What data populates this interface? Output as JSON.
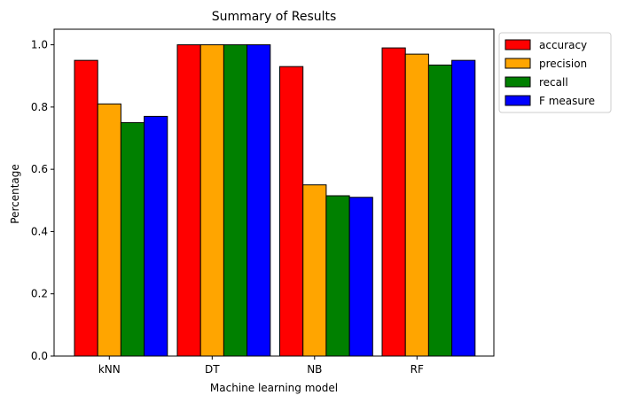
{
  "chart_data": {
    "type": "bar",
    "title": "Summary of Results",
    "xlabel": "Machine learning model",
    "ylabel": "Percentage",
    "categories": [
      "kNN",
      "DT",
      "NB",
      "RF"
    ],
    "ylim": [
      0,
      1.05
    ],
    "yticks": [
      0.0,
      0.2,
      0.4,
      0.6,
      0.8,
      1.0
    ],
    "ytick_labels": [
      "0.0",
      "0.2",
      "0.4",
      "0.6",
      "0.8",
      "1.0"
    ],
    "legend_position": "outside-top-right",
    "grid": false,
    "series": [
      {
        "name": "accuracy",
        "color": "#ff0000",
        "values": [
          0.95,
          1.0,
          0.93,
          0.99
        ]
      },
      {
        "name": "precision",
        "color": "#ffa500",
        "values": [
          0.81,
          1.0,
          0.55,
          0.97
        ]
      },
      {
        "name": "recall",
        "color": "#008000",
        "values": [
          0.75,
          1.0,
          0.515,
          0.935
        ]
      },
      {
        "name": "F measure",
        "color": "#0000ff",
        "values": [
          0.77,
          1.0,
          0.51,
          0.95
        ]
      }
    ]
  }
}
